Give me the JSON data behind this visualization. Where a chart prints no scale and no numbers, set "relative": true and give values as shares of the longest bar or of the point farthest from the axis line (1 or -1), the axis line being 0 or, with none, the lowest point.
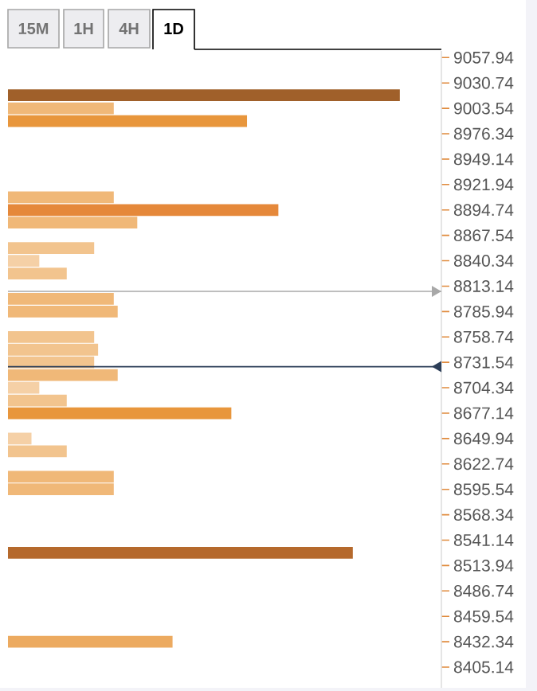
{
  "chart_data": {
    "type": "bar",
    "orientation": "horizontal",
    "relative": true,
    "x": [
      9017.6,
      9003.5,
      8989.9,
      8908.3,
      8894.7,
      8881.1,
      8853.9,
      8840.3,
      8826.7,
      8799.5,
      8785.9,
      8758.7,
      8745.1,
      8731.5,
      8717.9,
      8704.3,
      8690.7,
      8677.1,
      8649.9,
      8636.3,
      8609.1,
      8595.5,
      8527.5,
      8432.3
    ],
    "values": [
      1,
      0.27,
      0.61,
      0.27,
      0.69,
      0.33,
      0.22,
      0.08,
      0.15,
      0.27,
      0.28,
      0.22,
      0.23,
      0.22,
      0.28,
      0.08,
      0.15,
      0.57,
      0.06,
      0.15,
      0.27,
      0.27,
      0.88,
      0.42
    ],
    "colors": [
      "#a0602a",
      "#f0b878",
      "#e8963c",
      "#f0b878",
      "#e5883a",
      "#f0b878",
      "#f2c48e",
      "#f5d0a6",
      "#f2c48e",
      "#f0b878",
      "#f0b878",
      "#f2c48e",
      "#f2c48e",
      "#f2c48e",
      "#f0b878",
      "#f5d0a6",
      "#f2c48e",
      "#e8963c",
      "#f5d0a6",
      "#f2c48e",
      "#f0b878",
      "#f0b878",
      "#b5692c",
      "#ecaa60"
    ],
    "ylim": [
      8383,
      9065
    ],
    "yticks": [
      9057.94,
      9030.74,
      9003.54,
      8976.34,
      8949.14,
      8921.94,
      8894.74,
      8867.54,
      8840.34,
      8813.14,
      8785.94,
      8758.74,
      8731.54,
      8704.34,
      8677.14,
      8649.94,
      8622.74,
      8595.54,
      8568.34,
      8541.14,
      8513.94,
      8486.74,
      8459.54,
      8432.34,
      8405.14
    ],
    "ref_lines": [
      {
        "axis": "y",
        "value": 8807.5,
        "color": "#a8a8a8"
      },
      {
        "axis": "y",
        "value": 8726.9,
        "color": "#2c3e58"
      }
    ],
    "annotations": [
      "15M",
      "1H",
      "4H",
      "1D"
    ],
    "tick_labels": "y"
  }
}
